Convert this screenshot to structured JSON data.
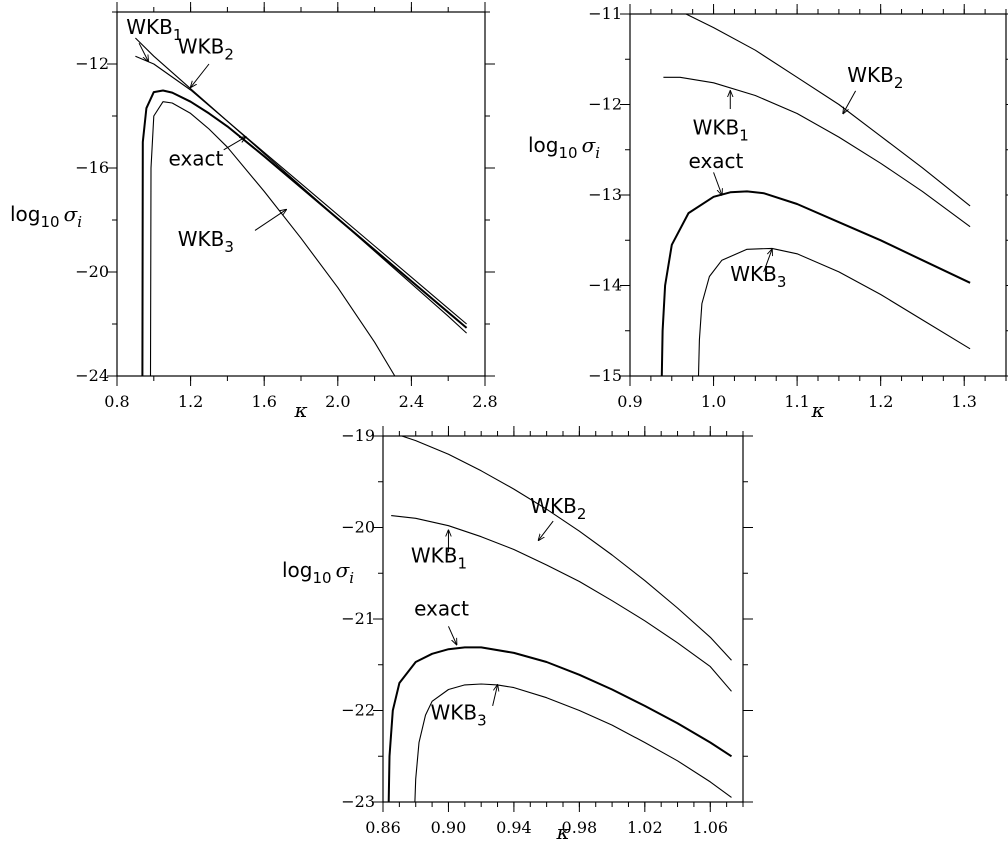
{
  "chart_data": [
    {
      "type": "line",
      "xlabel": "κ",
      "ylabel": {
        "base": "log",
        "sub": "10",
        "sym": "σ",
        "symsub": "i"
      },
      "xlim": [
        0.8,
        2.8
      ],
      "ylim": [
        -24,
        -10
      ],
      "xticks": [
        0.8,
        1.2,
        1.6,
        2.0,
        2.4,
        2.8
      ],
      "xtick_labels": [
        "0.8",
        "1.2",
        "1.6",
        "2.0",
        "2.4",
        "2.8"
      ],
      "yticks": [
        -24,
        -20,
        -16,
        -12
      ],
      "ytick_labels": [
        "−24",
        "−20",
        "−16",
        "−12"
      ],
      "x_minor_step": 0.2,
      "y_minor_step": 2,
      "grid": false,
      "series": [
        {
          "name": "exact",
          "x": [
            0.938,
            0.94,
            0.96,
            1.0,
            1.05,
            1.1,
            1.2,
            1.3,
            1.4,
            1.6,
            1.8,
            2.0,
            2.2,
            2.4,
            2.6,
            2.7
          ],
          "y": [
            -24,
            -15.0,
            -13.7,
            -13.08,
            -13.02,
            -13.1,
            -13.45,
            -13.9,
            -14.4,
            -15.55,
            -16.75,
            -17.95,
            -19.15,
            -20.35,
            -21.55,
            -22.15
          ]
        },
        {
          "name": "WKB1",
          "x": [
            0.9,
            1.0,
            1.2,
            1.4,
            1.6,
            1.8,
            2.0,
            2.2,
            2.4,
            2.6,
            2.7
          ],
          "y": [
            -11.7,
            -12.0,
            -13.0,
            -14.2,
            -15.45,
            -16.7,
            -17.95,
            -19.2,
            -20.45,
            -21.7,
            -22.35
          ]
        },
        {
          "name": "WKB2",
          "x": [
            0.9,
            1.0,
            1.2,
            1.4,
            1.6,
            1.8,
            2.0,
            2.2,
            2.4,
            2.6,
            2.7
          ],
          "y": [
            -11.0,
            -11.7,
            -12.95,
            -14.2,
            -15.4,
            -16.6,
            -17.8,
            -19.0,
            -20.2,
            -21.4,
            -22.0
          ]
        },
        {
          "name": "WKB3",
          "x": [
            0.982,
            0.985,
            1.0,
            1.05,
            1.1,
            1.2,
            1.3,
            1.4,
            1.6,
            1.8,
            2.0,
            2.2,
            2.31
          ],
          "y": [
            -24,
            -16.0,
            -14.0,
            -13.45,
            -13.5,
            -13.9,
            -14.5,
            -15.2,
            -16.9,
            -18.7,
            -20.6,
            -22.7,
            -24
          ]
        }
      ],
      "annotations": [
        {
          "label": "WKB",
          "sub": "1",
          "text_at": [
            0.85,
            -10.85
          ],
          "arrow_from": [
            0.92,
            -11.2
          ],
          "arrow_to": [
            0.97,
            -11.9
          ]
        },
        {
          "label": "WKB",
          "sub": "2",
          "text_at": [
            1.13,
            -11.6
          ],
          "arrow_from": [
            1.3,
            -12.0
          ],
          "arrow_to": [
            1.2,
            -12.9
          ]
        },
        {
          "label": "exact",
          "text_at": [
            1.08,
            -15.9
          ],
          "arrow_from": [
            1.38,
            -15.3
          ],
          "arrow_to": [
            1.5,
            -14.8
          ]
        },
        {
          "label": "WKB",
          "sub": "3",
          "text_at": [
            1.13,
            -19.0
          ],
          "arrow_from": [
            1.55,
            -18.4
          ],
          "arrow_to": [
            1.72,
            -17.6
          ]
        }
      ]
    },
    {
      "type": "line",
      "xlabel": "κ",
      "ylabel": {
        "base": "log",
        "sub": "10",
        "sym": "σ",
        "symsub": "i"
      },
      "xlim": [
        0.9,
        1.35
      ],
      "ylim": [
        -15,
        -11
      ],
      "xticks": [
        0.9,
        1.0,
        1.1,
        1.2,
        1.3
      ],
      "xtick_labels": [
        "0.9",
        "1.0",
        "1.1",
        "1.2",
        "1.3"
      ],
      "yticks": [
        -15,
        -14,
        -13,
        -12,
        -11
      ],
      "ytick_labels": [
        "−15",
        "−14",
        "−13",
        "−12",
        "−11"
      ],
      "x_minor_step": 0.025,
      "y_minor_step": 0.5,
      "grid": false,
      "series": [
        {
          "name": "exact",
          "x": [
            0.938,
            0.939,
            0.942,
            0.95,
            0.97,
            1.0,
            1.02,
            1.04,
            1.06,
            1.1,
            1.15,
            1.2,
            1.25,
            1.307
          ],
          "y": [
            -15,
            -14.5,
            -14.0,
            -13.55,
            -13.2,
            -13.02,
            -12.97,
            -12.96,
            -12.98,
            -13.1,
            -13.3,
            -13.5,
            -13.72,
            -13.97
          ]
        },
        {
          "name": "WKB1",
          "x": [
            0.94,
            0.96,
            1.0,
            1.05,
            1.1,
            1.15,
            1.2,
            1.25,
            1.307
          ],
          "y": [
            -11.7,
            -11.7,
            -11.76,
            -11.9,
            -12.1,
            -12.36,
            -12.65,
            -12.96,
            -13.35
          ]
        },
        {
          "name": "WKB2",
          "x": [
            0.967,
            1.0,
            1.05,
            1.1,
            1.15,
            1.2,
            1.25,
            1.307
          ],
          "y": [
            -11.0,
            -11.15,
            -11.4,
            -11.7,
            -12.0,
            -12.35,
            -12.7,
            -13.12
          ]
        },
        {
          "name": "WKB3",
          "x": [
            0.982,
            0.983,
            0.986,
            0.995,
            1.01,
            1.04,
            1.07,
            1.1,
            1.15,
            1.2,
            1.25,
            1.307
          ],
          "y": [
            -15,
            -14.6,
            -14.2,
            -13.9,
            -13.72,
            -13.6,
            -13.59,
            -13.65,
            -13.85,
            -14.1,
            -14.38,
            -14.7
          ]
        }
      ],
      "annotations": [
        {
          "label": "WKB",
          "sub": "2",
          "text_at": [
            1.16,
            -11.75
          ],
          "arrow_from": [
            1.17,
            -11.85
          ],
          "arrow_to": [
            1.155,
            -12.1
          ]
        },
        {
          "label": "WKB",
          "sub": "1",
          "text_at": [
            0.975,
            -12.33
          ],
          "arrow_from": [
            1.02,
            -12.05
          ],
          "arrow_to": [
            1.02,
            -11.85
          ]
        },
        {
          "label": "exact",
          "text_at": [
            0.97,
            -12.7
          ],
          "arrow_from": [
            1.0,
            -12.75
          ],
          "arrow_to": [
            1.01,
            -13.0
          ]
        },
        {
          "label": "WKB",
          "sub": "3",
          "text_at": [
            1.02,
            -13.95
          ],
          "arrow_from": [
            1.06,
            -13.85
          ],
          "arrow_to": [
            1.07,
            -13.6
          ]
        }
      ]
    },
    {
      "type": "line",
      "xlabel": "κ",
      "ylabel": {
        "base": "log",
        "sub": "10",
        "sym": "σ",
        "symsub": "i"
      },
      "xlim": [
        0.86,
        1.08
      ],
      "ylim": [
        -23,
        -19
      ],
      "xticks": [
        0.86,
        0.9,
        0.94,
        0.98,
        1.02,
        1.06
      ],
      "xtick_labels": [
        "0.86",
        "0.90",
        "0.94",
        "0.98",
        "1.02",
        "1.06"
      ],
      "yticks": [
        -23,
        -22,
        -21,
        -20,
        -19
      ],
      "ytick_labels": [
        "−23",
        "−22",
        "−21",
        "−20",
        "−19"
      ],
      "x_minor_step": 0.01,
      "y_minor_step": 0.5,
      "grid": false,
      "series": [
        {
          "name": "exact",
          "x": [
            0.8635,
            0.864,
            0.866,
            0.87,
            0.88,
            0.89,
            0.9,
            0.91,
            0.92,
            0.94,
            0.96,
            0.98,
            1.0,
            1.02,
            1.04,
            1.06,
            1.073
          ],
          "y": [
            -23,
            -22.5,
            -22.0,
            -21.7,
            -21.47,
            -21.38,
            -21.33,
            -21.31,
            -21.31,
            -21.37,
            -21.47,
            -21.61,
            -21.77,
            -21.95,
            -22.14,
            -22.35,
            -22.5
          ]
        },
        {
          "name": "WKB1",
          "x": [
            0.865,
            0.88,
            0.9,
            0.92,
            0.94,
            0.96,
            0.98,
            1.0,
            1.02,
            1.04,
            1.06,
            1.073
          ],
          "y": [
            -19.87,
            -19.9,
            -19.98,
            -20.1,
            -20.24,
            -20.41,
            -20.59,
            -20.8,
            -21.02,
            -21.26,
            -21.52,
            -21.79
          ]
        },
        {
          "name": "WKB2",
          "x": [
            0.8715,
            0.88,
            0.9,
            0.92,
            0.94,
            0.96,
            0.98,
            1.0,
            1.02,
            1.04,
            1.06,
            1.073
          ],
          "y": [
            -19.0,
            -19.05,
            -19.2,
            -19.38,
            -19.58,
            -19.8,
            -20.04,
            -20.3,
            -20.58,
            -20.88,
            -21.2,
            -21.45
          ]
        },
        {
          "name": "WKB3",
          "x": [
            0.8795,
            0.88,
            0.882,
            0.886,
            0.89,
            0.9,
            0.91,
            0.92,
            0.93,
            0.94,
            0.96,
            0.98,
            1.0,
            1.02,
            1.04,
            1.06,
            1.073
          ],
          "y": [
            -23,
            -22.75,
            -22.35,
            -22.05,
            -21.9,
            -21.77,
            -21.72,
            -21.71,
            -21.72,
            -21.75,
            -21.86,
            -22.0,
            -22.16,
            -22.35,
            -22.55,
            -22.78,
            -22.95
          ]
        }
      ],
      "annotations": [
        {
          "label": "WKB",
          "sub": "2",
          "text_at": [
            0.95,
            -19.84
          ],
          "arrow_from": [
            0.964,
            -19.93
          ],
          "arrow_to": [
            0.955,
            -20.14
          ]
        },
        {
          "label": "WKB",
          "sub": "1",
          "text_at": [
            0.877,
            -20.38
          ],
          "arrow_from": [
            0.9,
            -20.27
          ],
          "arrow_to": [
            0.9,
            -20.03
          ]
        },
        {
          "label": "exact",
          "text_at": [
            0.879,
            -20.96
          ],
          "arrow_from": [
            0.9,
            -21.08
          ],
          "arrow_to": [
            0.905,
            -21.28
          ]
        },
        {
          "label": "WKB",
          "sub": "3",
          "text_at": [
            0.889,
            -22.1
          ],
          "arrow_from": [
            0.927,
            -21.95
          ],
          "arrow_to": [
            0.93,
            -21.72
          ]
        }
      ]
    }
  ]
}
